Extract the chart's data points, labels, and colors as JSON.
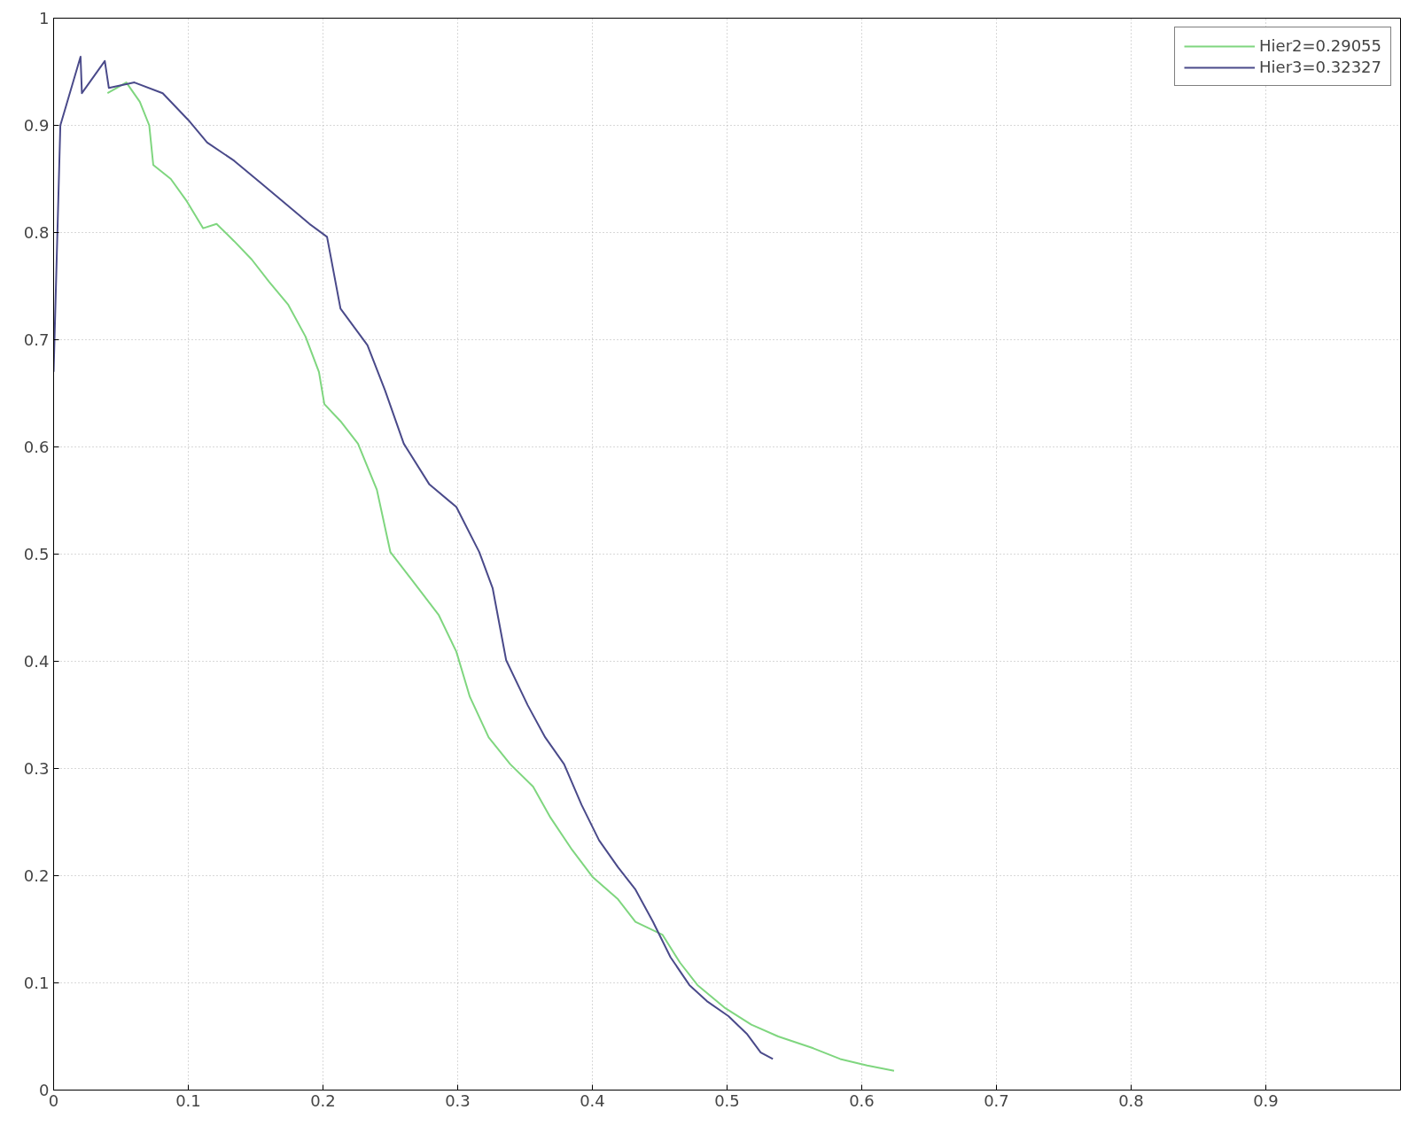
{
  "chart_data": {
    "type": "line",
    "xlim": [
      0,
      1
    ],
    "ylim": [
      0,
      1
    ],
    "xticks": [
      0,
      0.1,
      0.2,
      0.3,
      0.4,
      0.5,
      0.6,
      0.7,
      0.8,
      0.9
    ],
    "yticks": [
      0,
      0.1,
      0.2,
      0.3,
      0.4,
      0.5,
      0.6,
      0.7,
      0.8,
      0.9,
      1
    ],
    "grid": true,
    "legend": "top right",
    "line_style": "solid",
    "marker": "none",
    "series": [
      {
        "name": "Hier2=0.29055",
        "color": "#7fd67f",
        "x": [
          0.04,
          0.054,
          0.064,
          0.071,
          0.074,
          0.087,
          0.099,
          0.111,
          0.121,
          0.134,
          0.147,
          0.16,
          0.174,
          0.187,
          0.197,
          0.201,
          0.213,
          0.226,
          0.24,
          0.25,
          0.266,
          0.286,
          0.299,
          0.309,
          0.323,
          0.339,
          0.356,
          0.369,
          0.385,
          0.4,
          0.419,
          0.432,
          0.452,
          0.465,
          0.478,
          0.498,
          0.518,
          0.538,
          0.564,
          0.584,
          0.604,
          0.624
        ],
        "values": [
          0.93,
          0.94,
          0.922,
          0.9,
          0.863,
          0.85,
          0.829,
          0.804,
          0.808,
          0.792,
          0.775,
          0.754,
          0.733,
          0.703,
          0.67,
          0.64,
          0.624,
          0.603,
          0.56,
          0.502,
          0.476,
          0.443,
          0.409,
          0.367,
          0.329,
          0.304,
          0.283,
          0.254,
          0.224,
          0.199,
          0.178,
          0.157,
          0.145,
          0.119,
          0.098,
          0.077,
          0.061,
          0.05,
          0.039,
          0.029,
          0.023,
          0.018
        ]
      },
      {
        "name": "Hier3=0.32327",
        "color": "#4a4a8a",
        "x": [
          0,
          0.005,
          0.02,
          0.021,
          0.038,
          0.041,
          0.06,
          0.081,
          0.1,
          0.114,
          0.134,
          0.154,
          0.174,
          0.19,
          0.203,
          0.213,
          0.233,
          0.246,
          0.26,
          0.279,
          0.299,
          0.316,
          0.326,
          0.336,
          0.352,
          0.365,
          0.379,
          0.392,
          0.405,
          0.419,
          0.432,
          0.445,
          0.458,
          0.472,
          0.485,
          0.501,
          0.515,
          0.525,
          0.534
        ],
        "values": [
          0.67,
          0.9,
          0.964,
          0.93,
          0.96,
          0.935,
          0.94,
          0.93,
          0.905,
          0.884,
          0.867,
          0.846,
          0.825,
          0.808,
          0.796,
          0.729,
          0.695,
          0.653,
          0.603,
          0.565,
          0.544,
          0.502,
          0.468,
          0.401,
          0.359,
          0.329,
          0.304,
          0.266,
          0.233,
          0.208,
          0.187,
          0.157,
          0.124,
          0.098,
          0.083,
          0.069,
          0.052,
          0.035,
          0.029
        ]
      }
    ]
  }
}
